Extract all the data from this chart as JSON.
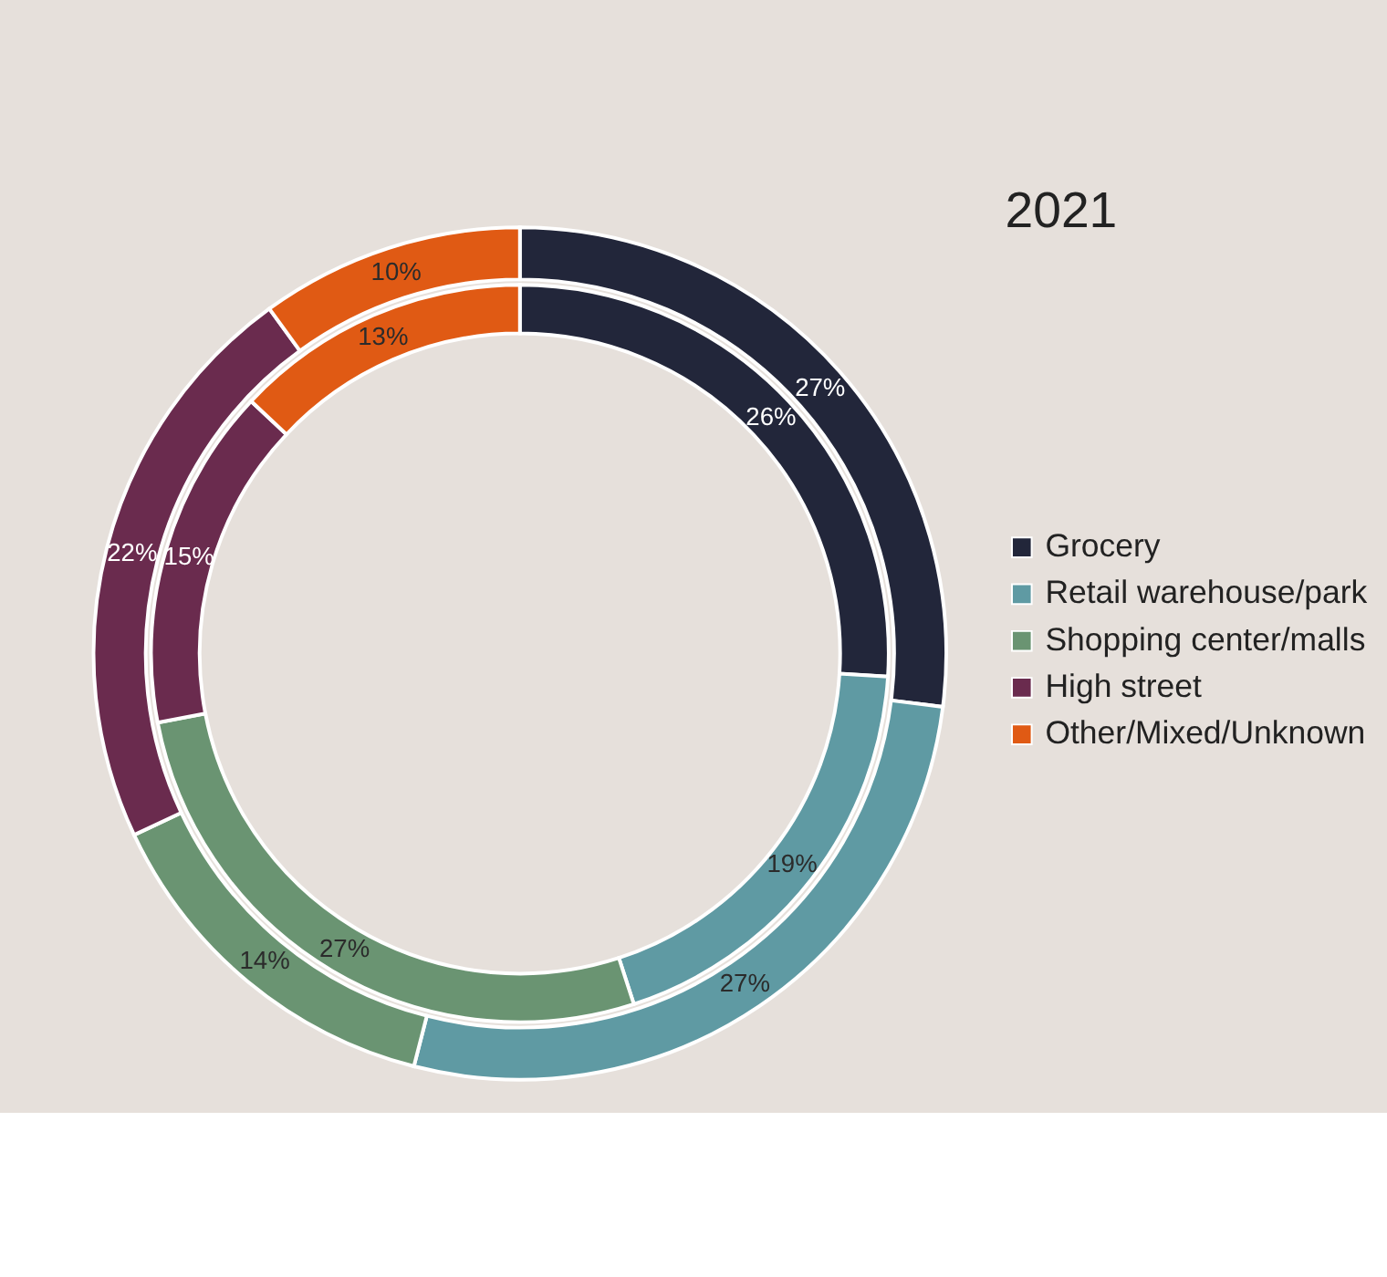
{
  "chart_data": {
    "type": "donut",
    "title": "2021",
    "categories": [
      "Grocery",
      "Retail warehouse/park",
      "Shopping center/malls",
      "High street",
      "Other/Mixed/Unknown"
    ],
    "colors": [
      "#22263a",
      "#5f9aa3",
      "#6a9472",
      "#6a2b4e",
      "#e05a14"
    ],
    "series": [
      {
        "values": [
          27,
          27,
          14,
          22,
          10
        ],
        "value_labels": [
          "27%",
          "27%",
          "14%",
          "22%",
          "10%"
        ]
      },
      {
        "values": [
          26,
          19,
          27,
          15,
          13
        ],
        "value_labels": [
          "26%",
          "19%",
          "27%",
          "15%",
          "13%"
        ]
      }
    ],
    "legend": "right"
  }
}
